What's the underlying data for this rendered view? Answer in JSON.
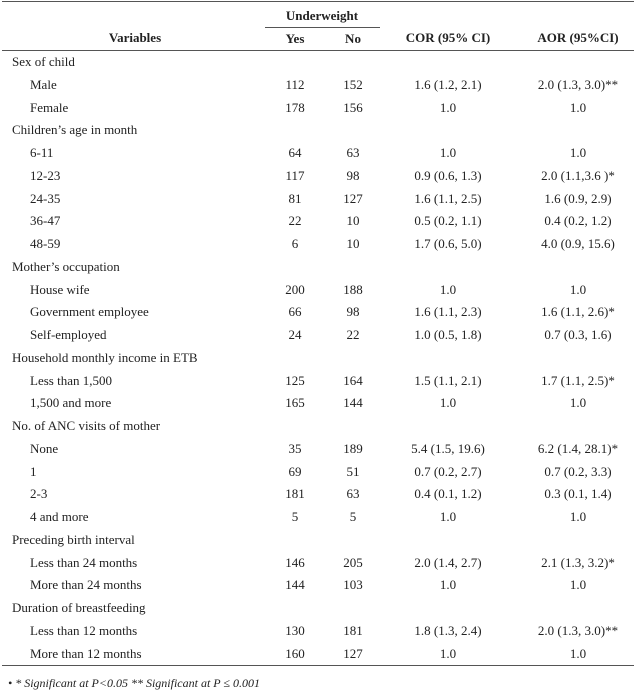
{
  "header": {
    "variables": "Variables",
    "underweight": "Underweight",
    "yes": "Yes",
    "no": "No",
    "cor": "COR (95% CI)",
    "aor": "AOR (95%CI)"
  },
  "rows": [
    {
      "group": "Sex of child"
    },
    {
      "label": "Male",
      "yes": 112,
      "no": 152,
      "cor": "1.6 (1.2, 2.1)",
      "aor": "2.0 (1.3, 3.0)**"
    },
    {
      "label": "Female",
      "yes": 178,
      "no": 156,
      "cor": "1.0",
      "aor": "1.0"
    },
    {
      "group": "Children’s age in month"
    },
    {
      "label": "6-11",
      "yes": 64,
      "no": 63,
      "cor": "1.0",
      "aor": "1.0"
    },
    {
      "label": "12-23",
      "yes": 117,
      "no": 98,
      "cor": "0.9 (0.6, 1.3)",
      "aor": "2.0 (1.1,3.6 )*"
    },
    {
      "label": "24-35",
      "yes": 81,
      "no": 127,
      "cor": "1.6 (1.1, 2.5)",
      "aor": "1.6 (0.9, 2.9)"
    },
    {
      "label": "36-47",
      "yes": 22,
      "no": 10,
      "cor": "0.5 (0.2, 1.1)",
      "aor": "0.4 (0.2, 1.2)"
    },
    {
      "label": "48-59",
      "yes": 6,
      "no": 10,
      "cor": "1.7 (0.6, 5.0)",
      "aor": "4.0 (0.9, 15.6)"
    },
    {
      "group": "Mother’s occupation"
    },
    {
      "label": "House wife",
      "yes": 200,
      "no": 188,
      "cor": "1.0",
      "aor": "1.0"
    },
    {
      "label": "Government employee",
      "yes": 66,
      "no": 98,
      "cor": "1.6 (1.1, 2.3)",
      "aor": "1.6 (1.1, 2.6)*"
    },
    {
      "label": "Self-employed",
      "yes": 24,
      "no": 22,
      "cor": "1.0 (0.5, 1.8)",
      "aor": "0.7 (0.3, 1.6)"
    },
    {
      "group": "Household monthly income in ETB"
    },
    {
      "label": "Less than 1,500",
      "yes": 125,
      "no": 164,
      "cor": "1.5 (1.1, 2.1)",
      "aor": "1.7 (1.1, 2.5)*"
    },
    {
      "label": "1,500 and more",
      "yes": 165,
      "no": 144,
      "cor": "1.0",
      "aor": "1.0"
    },
    {
      "group": "No. of ANC visits of mother"
    },
    {
      "label": "None",
      "yes": 35,
      "no": 189,
      "cor": "5.4 (1.5, 19.6)",
      "aor": "6.2 (1.4, 28.1)*"
    },
    {
      "label": "1",
      "yes": 69,
      "no": 51,
      "cor": "0.7 (0.2, 2.7)",
      "aor": "0.7 (0.2, 3.3)"
    },
    {
      "label": "2-3",
      "yes": 181,
      "no": 63,
      "cor": "0.4 (0.1, 1.2)",
      "aor": "0.3 (0.1, 1.4)"
    },
    {
      "label": "4 and more",
      "yes": 5,
      "no": 5,
      "cor": "1.0",
      "aor": "1.0"
    },
    {
      "group": "Preceding birth interval"
    },
    {
      "label": "Less than 24 months",
      "yes": 146,
      "no": 205,
      "cor": "2.0 (1.4, 2.7)",
      "aor": "2.1 (1.3, 3.2)*"
    },
    {
      "label": "More than 24 months",
      "yes": 144,
      "no": 103,
      "cor": "1.0",
      "aor": "1.0"
    },
    {
      "group": "Duration of breastfeeding"
    },
    {
      "label": "Less than 12 months",
      "yes": 130,
      "no": 181,
      "cor": "1.8 (1.3, 2.4)",
      "aor": "2.0 (1.3, 3.0)**"
    },
    {
      "label": "More than 12 months",
      "yes": 160,
      "no": 127,
      "cor": "1.0",
      "aor": "1.0"
    }
  ],
  "footnote": "• * Significant at P<0.05 ** Significant at P ≤ 0.001"
}
